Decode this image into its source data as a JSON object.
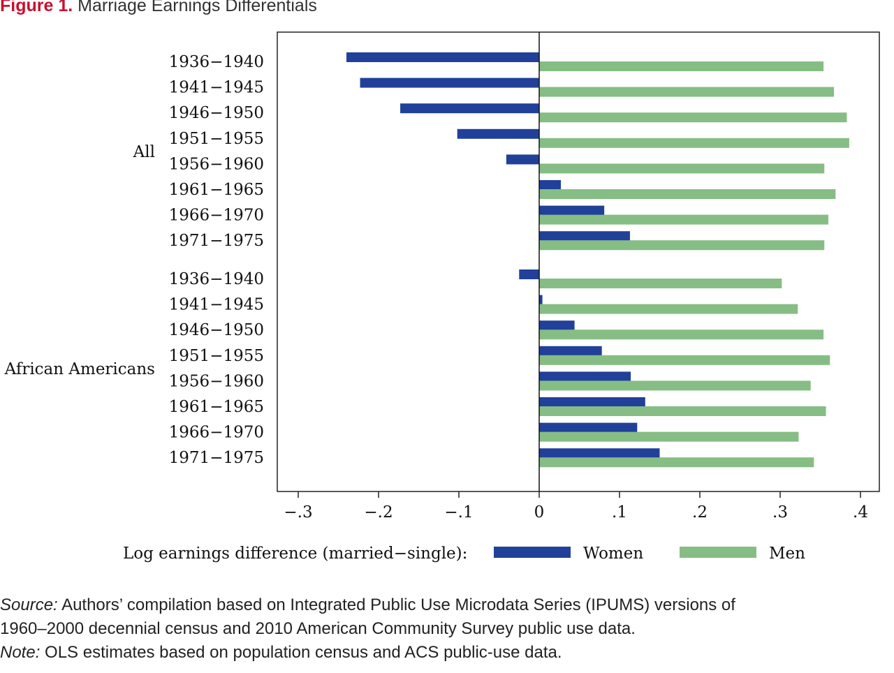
{
  "figure": {
    "label": "Figure 1.",
    "title": "Marriage Earnings Differentials"
  },
  "chart_data": {
    "type": "bar",
    "orientation": "horizontal",
    "xlim": [
      -0.33,
      0.42
    ],
    "x_ticks": [
      -0.3,
      -0.2,
      -0.1,
      0,
      0.1,
      0.2,
      0.3,
      0.4
    ],
    "x_tick_labels": [
      "−.3",
      "−.2",
      "−.1",
      "0",
      ".1",
      ".2",
      ".3",
      ".4"
    ],
    "legend_title": "Log earnings difference (married−single):",
    "legend_position": "bottom",
    "groups": [
      {
        "name": "All",
        "categories": [
          "1936−1940",
          "1941−1945",
          "1946−1950",
          "1951−1955",
          "1956−1960",
          "1961−1965",
          "1966−1970",
          "1971−1975"
        ]
      },
      {
        "name": "African Americans",
        "categories": [
          "1936−1940",
          "1941−1945",
          "1946−1950",
          "1951−1955",
          "1956−1960",
          "1961−1965",
          "1966−1970",
          "1971−1975"
        ]
      }
    ],
    "series": [
      {
        "name": "Women",
        "color": "#21409a",
        "values": [
          [
            -0.24,
            -0.223,
            -0.173,
            -0.102,
            -0.041,
            0.027,
            0.081,
            0.113
          ],
          [
            -0.025,
            0.004,
            0.044,
            0.078,
            0.114,
            0.132,
            0.122,
            0.15
          ]
        ]
      },
      {
        "name": "Men",
        "color": "#86bd84",
        "values": [
          [
            0.354,
            0.367,
            0.383,
            0.386,
            0.355,
            0.369,
            0.36,
            0.355
          ],
          [
            0.302,
            0.322,
            0.354,
            0.362,
            0.338,
            0.357,
            0.323,
            0.342
          ]
        ]
      }
    ]
  },
  "notes": {
    "source_label": "Source:",
    "source_text": " Authors’ compilation based on Integrated Public Use Microdata Series (IPUMS) versions of",
    "source_text_2": "1960–2000 decennial census and 2010 American Community Survey public use data.",
    "note_label": "Note:",
    "note_text": " OLS estimates based on population census and ACS public-use data."
  }
}
